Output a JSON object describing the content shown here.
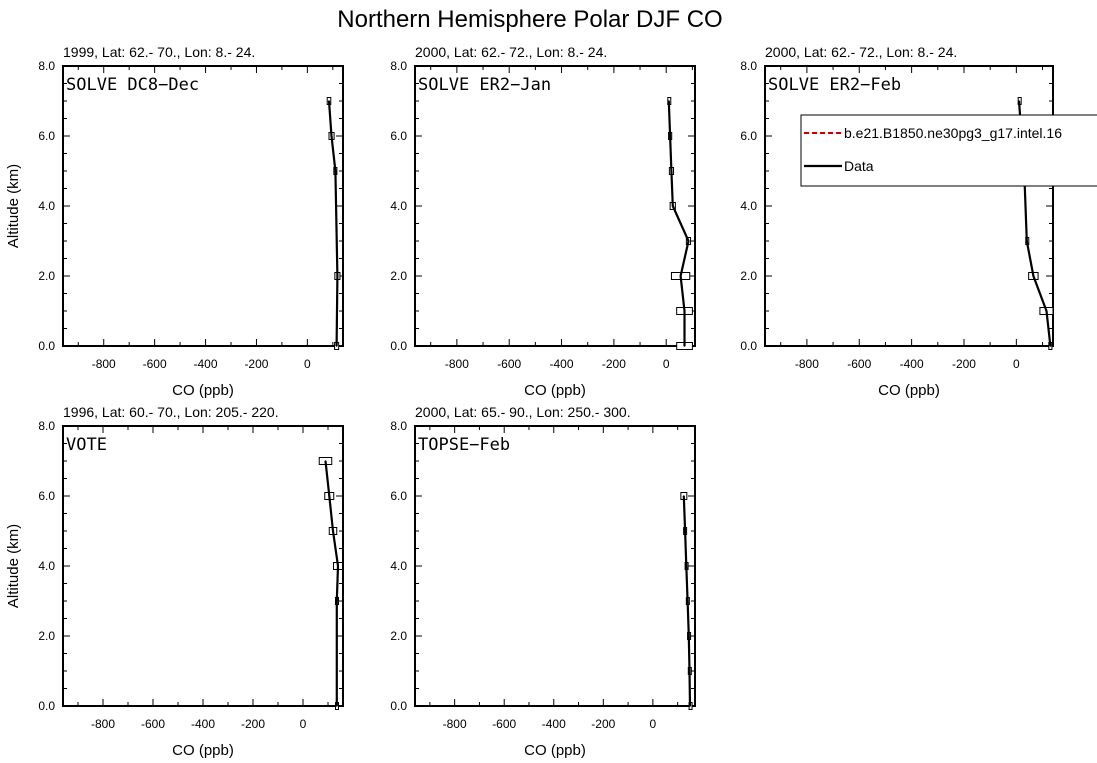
{
  "figure": {
    "title": "Northern Hemisphere Polar DJF CO"
  },
  "legend": {
    "placement": "top-right of panel 3",
    "entries": [
      {
        "label": "b.e21.B1850.ne30pg3_g17.intel.16",
        "color": "#cc0000",
        "dash": "dashed"
      },
      {
        "label": "Data",
        "color": "#000000",
        "dash": "solid"
      }
    ]
  },
  "chart_data": [
    {
      "type": "line",
      "panel_title": "1999, Lat: 62.- 70., Lon: 8.- 24.",
      "campaign": "SOLVE DC8−Dec",
      "xlabel": "CO (ppb)",
      "ylabel": "Altitude (km)",
      "xlim": [
        -960,
        140
      ],
      "ylim": [
        0,
        8
      ],
      "xticks": [
        "-800",
        "-600",
        "-400",
        "-200",
        "0"
      ],
      "xtick_values": [
        -800,
        -600,
        -400,
        -200,
        0
      ],
      "yticks": [
        "0.0",
        "2.0",
        "4.0",
        "6.0",
        "8.0"
      ],
      "ytick_values": [
        0,
        2,
        4,
        6,
        8
      ],
      "series": [
        {
          "name": "Data",
          "x": [
            115,
            118,
            110,
            95,
            85
          ],
          "y": [
            0,
            2,
            5,
            6,
            7
          ],
          "err": [
            8,
            10,
            6,
            10,
            7
          ]
        }
      ]
    },
    {
      "type": "line",
      "panel_title": "2000, Lat: 62.- 72., Lon: 8.- 24.",
      "campaign": "SOLVE ER2−Jan",
      "xlabel": "CO (ppb)",
      "ylabel": "",
      "xlim": [
        -960,
        110
      ],
      "ylim": [
        0,
        8
      ],
      "xticks": [
        "-800",
        "-600",
        "-400",
        "-200",
        "0"
      ],
      "xtick_values": [
        -800,
        -600,
        -400,
        -200,
        0
      ],
      "yticks": [
        "0.0",
        "2.0",
        "4.0",
        "6.0",
        "8.0"
      ],
      "ytick_values": [
        0,
        2,
        4,
        6,
        8
      ],
      "series": [
        {
          "name": "Data",
          "x": [
            70,
            70,
            55,
            85,
            25,
            20,
            15,
            10
          ],
          "y": [
            0,
            1,
            2,
            3,
            4,
            5,
            6,
            7
          ],
          "err": [
            30,
            30,
            35,
            8,
            10,
            8,
            6,
            4
          ]
        }
      ]
    },
    {
      "type": "line",
      "panel_title": "2000, Lat: 62.- 72., Lon: 8.- 24.",
      "campaign": "SOLVE ER2−Feb",
      "xlabel": "CO (ppb)",
      "ylabel": "",
      "xlim": [
        -960,
        140
      ],
      "ylim": [
        0,
        8
      ],
      "xticks": [
        "-800",
        "-600",
        "-400",
        "-200",
        "0"
      ],
      "xtick_values": [
        -800,
        -600,
        -400,
        -200,
        0
      ],
      "yticks": [
        "0.0",
        "2.0",
        "4.0",
        "6.0",
        "8.0"
      ],
      "ytick_values": [
        0,
        2,
        4,
        6,
        8
      ],
      "series": [
        {
          "name": "Data",
          "x": [
            130,
            115,
            65,
            40,
            30,
            20,
            10
          ],
          "y": [
            0,
            1,
            2,
            3,
            5,
            6,
            7
          ],
          "err": [
            6,
            25,
            18,
            4,
            5,
            4,
            3
          ]
        }
      ]
    },
    {
      "type": "line",
      "panel_title": "1996, Lat: 60.- 70., Lon: 205.- 220.",
      "campaign": "VOTE",
      "xlabel": "CO (ppb)",
      "ylabel": "Altitude (km)",
      "xlim": [
        -960,
        160
      ],
      "ylim": [
        0,
        8
      ],
      "xticks": [
        "-800",
        "-600",
        "-400",
        "-200",
        "0"
      ],
      "xtick_values": [
        -800,
        -600,
        -400,
        -200,
        0
      ],
      "yticks": [
        "0.0",
        "2.0",
        "4.0",
        "6.0",
        "8.0"
      ],
      "ytick_values": [
        0,
        2,
        4,
        6,
        8
      ],
      "series": [
        {
          "name": "Data",
          "x": [
            135,
            135,
            140,
            120,
            105,
            90
          ],
          "y": [
            0,
            3,
            4,
            5,
            6,
            7
          ],
          "err": [
            5,
            5,
            18,
            15,
            18,
            25
          ]
        }
      ]
    },
    {
      "type": "line",
      "panel_title": "2000, Lat: 65.- 90., Lon: 250.- 300.",
      "campaign": "TOPSE−Feb",
      "xlabel": "CO (ppb)",
      "ylabel": "",
      "xlim": [
        -960,
        170
      ],
      "ylim": [
        0,
        8
      ],
      "xticks": [
        "-800",
        "-600",
        "-400",
        "-200",
        "0"
      ],
      "xtick_values": [
        -800,
        -600,
        -400,
        -200,
        0
      ],
      "yticks": [
        "0.0",
        "2.0",
        "4.0",
        "6.0",
        "8.0"
      ],
      "ytick_values": [
        0,
        2,
        4,
        6,
        8
      ],
      "series": [
        {
          "name": "Data",
          "x": [
            150,
            148,
            145,
            140,
            135,
            130,
            125
          ],
          "y": [
            0,
            1,
            2,
            3,
            4,
            5,
            6
          ],
          "err": [
            4,
            5,
            5,
            5,
            5,
            6,
            12
          ]
        }
      ]
    }
  ]
}
